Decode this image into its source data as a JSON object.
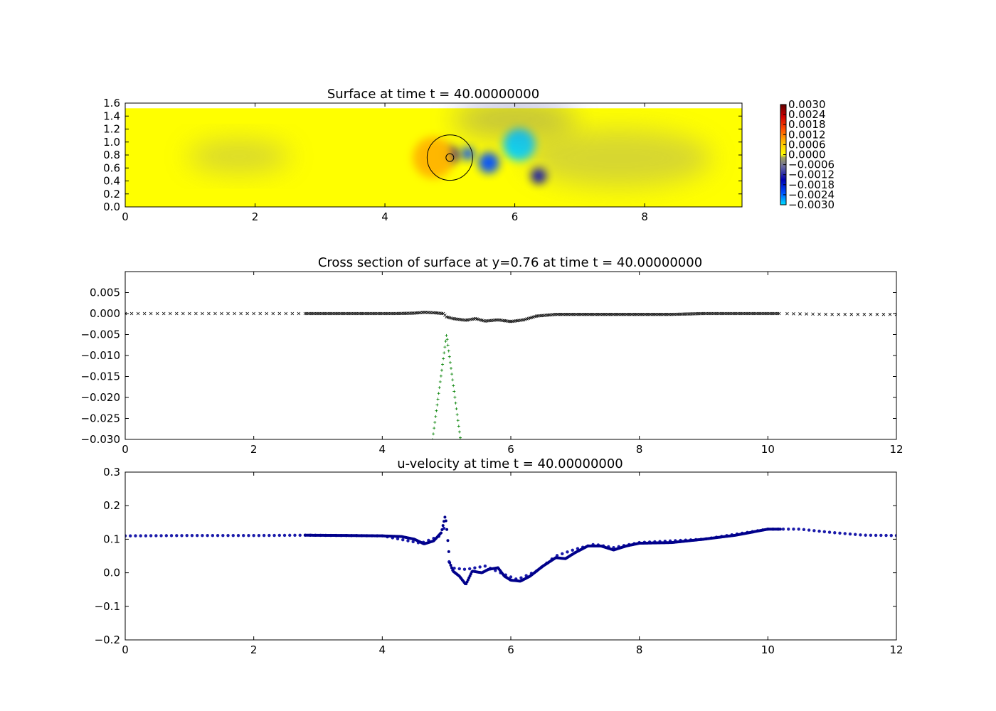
{
  "chart_data": [
    {
      "type": "heatmap",
      "title": "Surface at time t =    40.00000000",
      "xlim": [
        0,
        9.5
      ],
      "ylim": [
        0,
        1.6
      ],
      "xticks": [
        "0",
        "2",
        "4",
        "6",
        "8"
      ],
      "yticks": [
        "0.0",
        "0.2",
        "0.4",
        "0.6",
        "0.8",
        "1.0",
        "1.2",
        "1.4",
        "1.6"
      ],
      "field_ylim": [
        0,
        1.52
      ],
      "features": [
        {
          "x": 6.07,
          "y": 0.96,
          "r": 0.25,
          "value": -0.0028
        },
        {
          "x": 5.6,
          "y": 0.68,
          "r": 0.16,
          "value": -0.0021
        },
        {
          "x": 5.28,
          "y": 0.82,
          "r": 0.1,
          "value": -0.0019
        },
        {
          "x": 6.37,
          "y": 0.48,
          "r": 0.12,
          "value": -0.0017
        },
        {
          "x": 5.02,
          "y": 0.8,
          "r": 0.12,
          "value": -0.0014
        },
        {
          "x": 4.75,
          "y": 0.76,
          "r": 0.32,
          "value": 0.0006
        },
        {
          "x": 1.75,
          "y": 0.78,
          "r": 0.5,
          "value": -0.0003
        },
        {
          "x": 7.6,
          "y": 0.75,
          "r": 0.9,
          "value": -0.0004
        },
        {
          "x": 6.0,
          "y": 1.35,
          "r": 0.6,
          "value": -0.0008
        }
      ],
      "body": {
        "cx": 5.0,
        "cy": 0.76,
        "r": 0.35,
        "inner_r": 0.06
      },
      "colorbar": {
        "range": [
          -0.003,
          0.003
        ],
        "ticks": [
          "0.0030",
          "0.0024",
          "0.0018",
          "0.0012",
          "0.0006",
          "0.0000",
          "−0.0006",
          "−0.0012",
          "−0.0018",
          "−0.0024",
          "−0.0030"
        ],
        "colors": [
          "#00d8ff",
          "#0050ff",
          "#0000b0",
          "#5a5aa8",
          "#8c8c8c",
          "#ffff00",
          "#ffb400",
          "#ff4000",
          "#d00000",
          "#7a0000"
        ]
      }
    },
    {
      "type": "scatter",
      "title": "Cross section of surface at y=0.76 at time t =    40.00000000",
      "xlim": [
        0,
        12
      ],
      "ylim": [
        -0.03,
        0.01
      ],
      "xticks": [
        "0",
        "2",
        "4",
        "6",
        "8",
        "10",
        "12"
      ],
      "yticks": [
        "−0.030",
        "−0.025",
        "−0.020",
        "−0.015",
        "−0.010",
        "−0.005",
        "0.000",
        "0.005"
      ],
      "series": [
        {
          "marker": "x",
          "color": "#000000",
          "x": [
            0,
            12
          ],
          "y": [
            0,
            0
          ],
          "sparse_x": [
            0,
            2.8,
            10.2,
            12
          ],
          "dense_x": [
            2.8,
            10.2
          ],
          "profile": [
            [
              2.8,
              0.0
            ],
            [
              3.5,
              0.0
            ],
            [
              4.2,
              0.0
            ],
            [
              4.5,
              0.0001
            ],
            [
              4.65,
              0.0003
            ],
            [
              4.8,
              0.0002
            ],
            [
              4.95,
              0.0
            ],
            [
              5.0,
              -0.0008
            ],
            [
              5.1,
              -0.0012
            ],
            [
              5.3,
              -0.0016
            ],
            [
              5.45,
              -0.0012
            ],
            [
              5.6,
              -0.0018
            ],
            [
              5.8,
              -0.0015
            ],
            [
              6.0,
              -0.0019
            ],
            [
              6.2,
              -0.0015
            ],
            [
              6.4,
              -0.0006
            ],
            [
              6.7,
              -0.0002
            ],
            [
              7.5,
              -0.0002
            ],
            [
              8.5,
              -0.0002
            ],
            [
              9.0,
              0.0
            ],
            [
              10.2,
              0.0
            ],
            [
              11,
              -0.0002
            ],
            [
              12,
              -0.0002
            ]
          ]
        },
        {
          "marker": "+",
          "color": "#008000",
          "peak_x": 5.0,
          "peak_y": -0.005,
          "half_width": 0.25
        }
      ]
    },
    {
      "type": "scatter",
      "title": "u-velocity at time t =    40.00000000",
      "xlim": [
        0,
        12
      ],
      "ylim": [
        -0.2,
        0.3
      ],
      "xticks": [
        "0",
        "2",
        "4",
        "6",
        "8",
        "10",
        "12"
      ],
      "yticks": [
        "−0.2",
        "−0.1",
        "0.0",
        "0.1",
        "0.2",
        "0.3"
      ],
      "series": [
        {
          "marker": "o",
          "color": "#00008b",
          "profile": [
            [
              2.8,
              0.112
            ],
            [
              3.5,
              0.111
            ],
            [
              4.0,
              0.11
            ],
            [
              4.3,
              0.108
            ],
            [
              4.5,
              0.1
            ],
            [
              4.65,
              0.086
            ],
            [
              4.8,
              0.095
            ],
            [
              4.92,
              0.12
            ],
            [
              4.98,
              0.17
            ],
            [
              5.0,
              0.14
            ],
            [
              5.05,
              0.03
            ],
            [
              5.1,
              0.005
            ],
            [
              5.2,
              -0.01
            ],
            [
              5.3,
              -0.035
            ],
            [
              5.4,
              0.005
            ],
            [
              5.55,
              0.0
            ],
            [
              5.65,
              0.01
            ],
            [
              5.8,
              0.015
            ],
            [
              5.9,
              -0.01
            ],
            [
              6.0,
              -0.022
            ],
            [
              6.15,
              -0.025
            ],
            [
              6.3,
              -0.01
            ],
            [
              6.5,
              0.02
            ],
            [
              6.7,
              0.045
            ],
            [
              6.85,
              0.042
            ],
            [
              7.0,
              0.06
            ],
            [
              7.2,
              0.08
            ],
            [
              7.4,
              0.08
            ],
            [
              7.6,
              0.068
            ],
            [
              7.8,
              0.08
            ],
            [
              8.0,
              0.088
            ],
            [
              8.5,
              0.09
            ],
            [
              9.0,
              0.1
            ],
            [
              9.5,
              0.112
            ],
            [
              10.0,
              0.13
            ],
            [
              10.2,
              0.13
            ]
          ]
        },
        {
          "marker": "o",
          "color": "#1a1aaa",
          "profile": [
            [
              0,
              0.11
            ],
            [
              1,
              0.111
            ],
            [
              2,
              0.111
            ],
            [
              2.8,
              0.112
            ],
            [
              4.0,
              0.11
            ],
            [
              4.6,
              0.088
            ],
            [
              4.9,
              0.11
            ],
            [
              4.98,
              0.14
            ],
            [
              5.05,
              0.015
            ],
            [
              5.3,
              0.01
            ],
            [
              5.6,
              0.02
            ],
            [
              5.9,
              -0.005
            ],
            [
              6.1,
              -0.02
            ],
            [
              6.4,
              0.005
            ],
            [
              6.7,
              0.05
            ],
            [
              7.0,
              0.07
            ],
            [
              7.3,
              0.085
            ],
            [
              7.6,
              0.075
            ],
            [
              8.0,
              0.09
            ],
            [
              9.0,
              0.1
            ],
            [
              10.0,
              0.13
            ],
            [
              10.5,
              0.13
            ],
            [
              11.0,
              0.12
            ],
            [
              11.5,
              0.112
            ],
            [
              12,
              0.111
            ]
          ]
        }
      ]
    }
  ]
}
